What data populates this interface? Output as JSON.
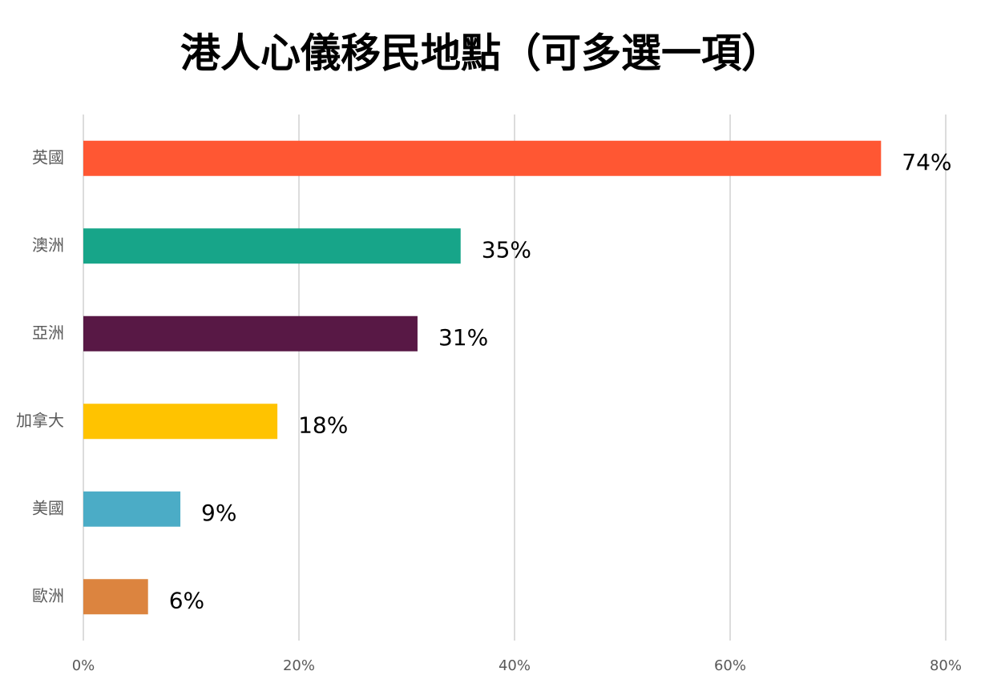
{
  "chart_data": {
    "type": "bar",
    "orientation": "horizontal",
    "title": "港人心儀移民地點（可多選一項）",
    "categories": [
      "英國",
      "澳洲",
      "亞洲",
      "加拿大",
      "美國",
      "歐洲"
    ],
    "values": [
      74,
      35,
      31,
      18,
      9,
      6
    ],
    "value_labels": [
      "74%",
      "35%",
      "31%",
      "18%",
      "9%",
      "6%"
    ],
    "colors": [
      "#ff5733",
      "#17a589",
      "#581845",
      "#ffc300",
      "#4bacc6",
      "#dc843f"
    ],
    "xlim": [
      0,
      80
    ],
    "xticks": [
      {
        "value": 0,
        "label": "0%"
      },
      {
        "value": 20,
        "label": "20%"
      },
      {
        "value": 40,
        "label": "40%"
      },
      {
        "value": 60,
        "label": "60%"
      },
      {
        "value": 80,
        "label": "80%"
      }
    ],
    "grid": true
  }
}
